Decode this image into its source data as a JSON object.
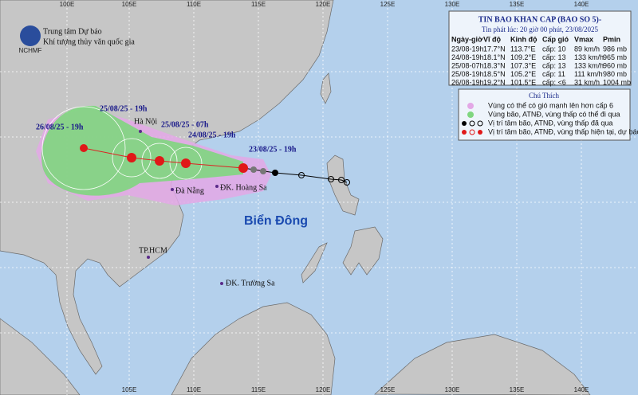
{
  "axis_top": [
    "100E",
    "105E",
    "110E",
    "115E",
    "120E",
    "125E",
    "130E",
    "135E",
    "140E"
  ],
  "axis_bottom": [
    "105E",
    "110E",
    "115E",
    "120E",
    "125E",
    "130E",
    "135E",
    "140E"
  ],
  "logo": {
    "line1": "Trung tâm Dự báo",
    "line2": "Khí tượng thủy văn quốc gia",
    "abbr": "NCHMF"
  },
  "bulletin": {
    "title": "TIN BAO KHAN CAP (BAO SO 5)-",
    "issued": "Tin phát lúc: 20 giờ 00 phút, 23/08/2025",
    "headers": [
      "Ngày-giờ",
      "Vĩ độ",
      "Kinh độ",
      "Cấp gió",
      "Vmax",
      "Pmin"
    ],
    "rows": [
      [
        "23/08-19h",
        "17.7°N",
        "113.7°E",
        "cấp: 10",
        "89 km/h",
        "986 mb"
      ],
      [
        "24/08-19h",
        "18.1°N",
        "109.2°E",
        "cấp: 13",
        "133 km/h",
        "965 mb"
      ],
      [
        "25/08-07h",
        "18.3°N",
        "107.3°E",
        "cấp: 13",
        "133 km/h",
        "960 mb"
      ],
      [
        "25/08-19h",
        "18.5°N",
        "105.2°E",
        "cấp: 11",
        "111 km/h",
        "980 mb"
      ],
      [
        "26/08-19h",
        "19.2°N",
        "101.5°E",
        "cấp: <6",
        "31 km/h",
        "1004 mb"
      ]
    ]
  },
  "legend": {
    "title": "Chú Thích",
    "items": [
      "Vùng có thể có gió mạnh lên hơn cấp 6",
      "Vùng bão, ATNĐ, vùng thấp có thể đi qua",
      "Vị trí tâm bão, ATNĐ, vùng thấp đã qua",
      "Vị trí tâm bão, ATNĐ, vùng thấp hiện tại, dự báo"
    ]
  },
  "track_labels": [
    "25/08/25 - 19h",
    "25/08/25 - 07h",
    "26/08/25 - 19h",
    "24/08/25 - 19h",
    "23/08/25 - 19h"
  ],
  "places": [
    "Hà Nội",
    "Đà Nẵng",
    "ĐK. Hoàng Sa",
    "Biển Đông",
    "TP.HCM",
    "ĐK. Trường Sa"
  ]
}
